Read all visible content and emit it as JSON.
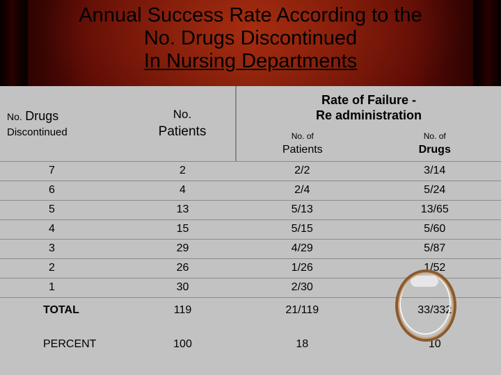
{
  "title": {
    "line1": "Annual  Success Rate According to the",
    "line2": "No.  Drugs  Discontinued",
    "line3": "In Nursing Departments"
  },
  "table": {
    "headers": {
      "col1_small": "No.",
      "col1_big": "Drugs",
      "col1_line2": "Discontinued",
      "col2_small": "No.",
      "col2_big": "Patients",
      "group_line1": "Rate of Failure -",
      "group_line2": "Re administration",
      "sub1_small": "No. of",
      "sub1_big": "Patients",
      "sub2_small": "No. of",
      "sub2_big": "Drugs"
    },
    "rows": [
      {
        "drugs": "7",
        "patients": "2",
        "fail_patients": "2/2",
        "fail_drugs": "3/14"
      },
      {
        "drugs": "6",
        "patients": "4",
        "fail_patients": "2/4",
        "fail_drugs": "5/24"
      },
      {
        "drugs": "5",
        "patients": "13",
        "fail_patients": "5/13",
        "fail_drugs": "13/65"
      },
      {
        "drugs": "4",
        "patients": "15",
        "fail_patients": "5/15",
        "fail_drugs": "5/60"
      },
      {
        "drugs": "3",
        "patients": "29",
        "fail_patients": "4/29",
        "fail_drugs": "5/87"
      },
      {
        "drugs": "2",
        "patients": "26",
        "fail_patients": "1/26",
        "fail_drugs": "1/52"
      },
      {
        "drugs": "1",
        "patients": "30",
        "fail_patients": "2/30",
        "fail_drugs": ""
      }
    ],
    "total": {
      "label": "TOTAL",
      "patients": "119",
      "fail_patients": "21/119",
      "fail_drugs": "33/332"
    },
    "percent": {
      "label": "PERCENT",
      "patients": "100",
      "fail_patients": "18",
      "fail_drugs": "10"
    }
  },
  "colors": {
    "background": "#7a1a0a",
    "table": "#c2c2c2",
    "ring": "#8a5a30"
  }
}
